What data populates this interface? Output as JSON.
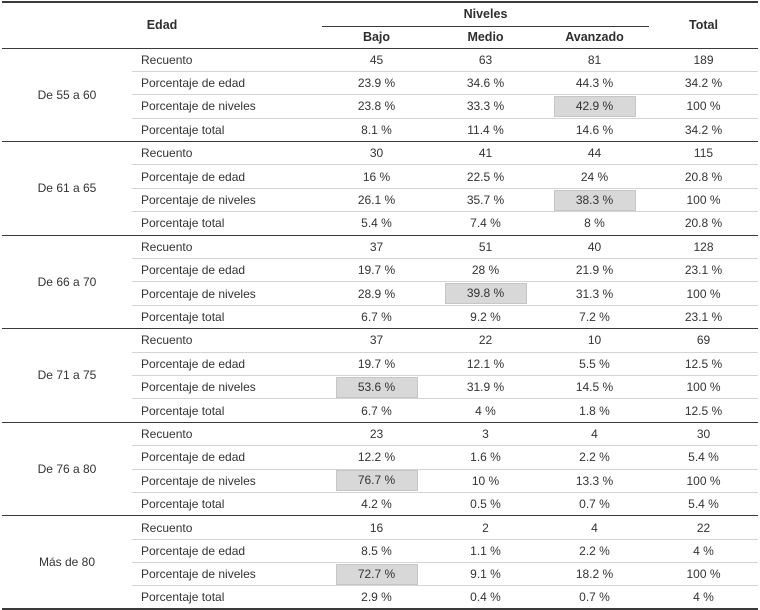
{
  "colors": {
    "dark_line": "#3a3a3a",
    "light_line": "#d4d4d4",
    "highlight_bg": "#d8d8d8",
    "highlight_border": "#c6c6c6",
    "text": "#333333",
    "background": "#ffffff"
  },
  "chart_data": {
    "type": "table",
    "headers": {
      "edad": "Edad",
      "niveles": "Niveles",
      "levels": [
        "Bajo",
        "Medio",
        "Avanzado"
      ],
      "total": "Total"
    },
    "groups": [
      {
        "edad": "De 55 a 60",
        "rows": [
          {
            "label": "Recuento",
            "values": [
              "45",
              "63",
              "81",
              "189"
            ],
            "highlight": -1
          },
          {
            "label": "Porcentaje de edad",
            "values": [
              "23.9 %",
              "34.6 %",
              "44.3 %",
              "34.2 %"
            ],
            "highlight": -1
          },
          {
            "label": "Porcentaje de niveles",
            "values": [
              "23.8 %",
              "33.3 %",
              "42.9 %",
              "100 %"
            ],
            "highlight": 2
          },
          {
            "label": "Porcentaje total",
            "values": [
              "8.1 %",
              "11.4 %",
              "14.6 %",
              "34.2 %"
            ],
            "highlight": -1
          }
        ]
      },
      {
        "edad": "De 61 a 65",
        "rows": [
          {
            "label": "Recuento",
            "values": [
              "30",
              "41",
              "44",
              "115"
            ],
            "highlight": -1
          },
          {
            "label": "Porcentaje de edad",
            "values": [
              "16 %",
              "22.5 %",
              "24 %",
              "20.8 %"
            ],
            "highlight": -1
          },
          {
            "label": "Porcentaje de niveles",
            "values": [
              "26.1 %",
              "35.7 %",
              "38.3 %",
              "100 %"
            ],
            "highlight": 2
          },
          {
            "label": "Porcentaje total",
            "values": [
              "5.4 %",
              "7.4 %",
              "8 %",
              "20.8 %"
            ],
            "highlight": -1
          }
        ]
      },
      {
        "edad": "De 66 a 70",
        "rows": [
          {
            "label": "Recuento",
            "values": [
              "37",
              "51",
              "40",
              "128"
            ],
            "highlight": -1
          },
          {
            "label": "Porcentaje de edad",
            "values": [
              "19.7 %",
              "28 %",
              "21.9 %",
              "23.1 %"
            ],
            "highlight": -1
          },
          {
            "label": "Porcentaje de niveles",
            "values": [
              "28.9 %",
              "39.8 %",
              "31.3 %",
              "100 %"
            ],
            "highlight": 1
          },
          {
            "label": "Porcentaje total",
            "values": [
              "6.7 %",
              "9.2 %",
              "7.2 %",
              "23.1 %"
            ],
            "highlight": -1
          }
        ]
      },
      {
        "edad": "De 71 a 75",
        "rows": [
          {
            "label": "Recuento",
            "values": [
              "37",
              "22",
              "10",
              "69"
            ],
            "highlight": -1
          },
          {
            "label": "Porcentaje de edad",
            "values": [
              "19.7 %",
              "12.1 %",
              "5.5 %",
              "12.5 %"
            ],
            "highlight": -1
          },
          {
            "label": "Porcentaje de niveles",
            "values": [
              "53.6 %",
              "31.9 %",
              "14.5 %",
              "100 %"
            ],
            "highlight": 0
          },
          {
            "label": "Porcentaje total",
            "values": [
              "6.7 %",
              "4 %",
              "1.8 %",
              "12.5 %"
            ],
            "highlight": -1
          }
        ]
      },
      {
        "edad": "De 76 a 80",
        "rows": [
          {
            "label": "Recuento",
            "values": [
              "23",
              "3",
              "4",
              "30"
            ],
            "highlight": -1
          },
          {
            "label": "Porcentaje de edad",
            "values": [
              "12.2 %",
              "1.6 %",
              "2.2 %",
              "5.4 %"
            ],
            "highlight": -1
          },
          {
            "label": "Porcentaje de niveles",
            "values": [
              "76.7 %",
              "10 %",
              "13.3 %",
              "100 %"
            ],
            "highlight": 0
          },
          {
            "label": "Porcentaje total",
            "values": [
              "4.2 %",
              "0.5 %",
              "0.7 %",
              "5.4 %"
            ],
            "highlight": -1
          }
        ]
      },
      {
        "edad": "Más de 80",
        "rows": [
          {
            "label": "Recuento",
            "values": [
              "16",
              "2",
              "4",
              "22"
            ],
            "highlight": -1
          },
          {
            "label": "Porcentaje de edad",
            "values": [
              "8.5 %",
              "1.1 %",
              "2.2 %",
              "4 %"
            ],
            "highlight": -1
          },
          {
            "label": "Porcentaje de niveles",
            "values": [
              "72.7 %",
              "9.1 %",
              "18.2 %",
              "100 %"
            ],
            "highlight": 0
          },
          {
            "label": "Porcentaje total",
            "values": [
              "2.9 %",
              "0.4 %",
              "0.7 %",
              "4 %"
            ],
            "highlight": -1
          }
        ]
      }
    ]
  }
}
